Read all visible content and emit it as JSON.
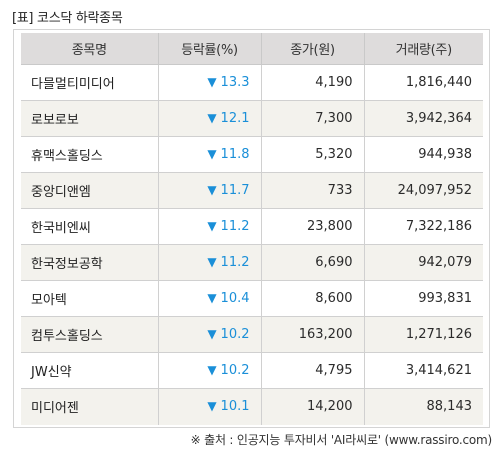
{
  "title": "[표] 코스닥 하락종목",
  "table": {
    "headers": [
      "종목명",
      "등락률(%)",
      "종가(원)",
      "거래량(주)"
    ],
    "rows": [
      {
        "name": "다믈멀티미디어",
        "change": "13.3",
        "close": "4,190",
        "volume": "1,816,440"
      },
      {
        "name": "로보로보",
        "change": "12.1",
        "close": "7,300",
        "volume": "3,942,364"
      },
      {
        "name": "휴맥스홀딩스",
        "change": "11.8",
        "close": "5,320",
        "volume": "944,938"
      },
      {
        "name": "중앙디앤엠",
        "change": "11.7",
        "close": "733",
        "volume": "24,097,952"
      },
      {
        "name": "한국비엔씨",
        "change": "11.2",
        "close": "23,800",
        "volume": "7,322,186"
      },
      {
        "name": "한국정보공학",
        "change": "11.2",
        "close": "6,690",
        "volume": "942,079"
      },
      {
        "name": "모아텍",
        "change": "10.4",
        "close": "8,600",
        "volume": "993,831"
      },
      {
        "name": "컴투스홀딩스",
        "change": "10.2",
        "close": "163,200",
        "volume": "1,271,126"
      },
      {
        "name": "JW신약",
        "change": "10.2",
        "close": "4,795",
        "volume": "3,414,621"
      },
      {
        "name": "미디어젠",
        "change": "10.1",
        "close": "14,200",
        "volume": "88,143"
      }
    ]
  },
  "down_icon": "▼",
  "source": "※ 출처 : 인공지능 투자비서 'AI라씨로' (www.rassiro.com)",
  "colors": {
    "header_bg": "#dedcdc",
    "alt_row_bg": "#f3f2ed",
    "decline": "#1a8fd8"
  }
}
